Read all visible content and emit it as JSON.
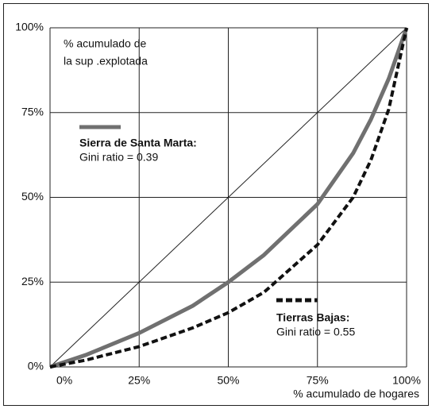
{
  "chart_data": {
    "type": "line",
    "y_label": [
      "% acumulado de",
      "la sup .explotada"
    ],
    "x_label": "% acumulado de hogares",
    "x": [
      0,
      10,
      25,
      40,
      50,
      60,
      75,
      85,
      90,
      95,
      100
    ],
    "series": [
      {
        "name": "Sierra de Santa Marta:",
        "color": "#707070",
        "dash": false,
        "values": [
          0,
          3.5,
          10,
          18,
          25,
          33,
          48,
          63,
          73,
          85,
          100
        ]
      },
      {
        "name": "Tierras Bajas:",
        "color": "#111111",
        "dash": true,
        "values": [
          0,
          2,
          6,
          11.5,
          16,
          22,
          36,
          50,
          61,
          76,
          100
        ]
      }
    ],
    "annotations": [
      "Gini ratio = 0.39",
      "Gini ratio = 0.55"
    ],
    "xlim": [
      0,
      100
    ],
    "ylim": [
      0,
      100
    ],
    "xticks": [
      {
        "value": 0,
        "label": "0%"
      },
      {
        "value": 25,
        "label": "25%"
      },
      {
        "value": 50,
        "label": "50%"
      },
      {
        "value": 75,
        "label": "75%"
      },
      {
        "value": 100,
        "label": "100%"
      }
    ],
    "yticks": [
      {
        "value": 0,
        "label": "0%"
      },
      {
        "value": 25,
        "label": "25%"
      },
      {
        "value": 50,
        "label": "50%"
      },
      {
        "value": 75,
        "label": "75%"
      },
      {
        "value": 100,
        "label": "100%"
      }
    ],
    "grid": true
  }
}
